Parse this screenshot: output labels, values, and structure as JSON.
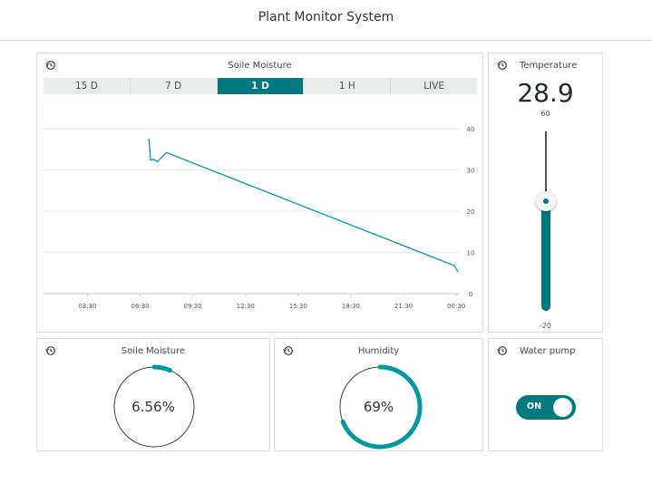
{
  "header": {
    "title": "Plant Monitor System"
  },
  "colors": {
    "accent": "#009a9e",
    "active_tab": "#007a80",
    "border": "#d6dbdc"
  },
  "icons": {
    "card_header": "history-icon"
  },
  "soil_chart": {
    "title": "Soile Moisture",
    "tabs": [
      "15 D",
      "7 D",
      "1 D",
      "1 H",
      "LIVE"
    ],
    "active_tab": "1 D"
  },
  "chart_data": {
    "type": "line",
    "title": "Soile Moisture",
    "xlabel": "",
    "ylabel": "",
    "x_ticks": [
      "03:30",
      "06:30",
      "09:30",
      "12:30",
      "15:30",
      "18:30",
      "21:30",
      "00:30"
    ],
    "y_ticks": [
      "40",
      "30",
      "20",
      "10",
      "0"
    ],
    "ylim": [
      0,
      40
    ],
    "xlim_hours": [
      1.0,
      24.7
    ],
    "grid": true,
    "series": [
      {
        "values_x_hours": [
          7.0,
          7.1,
          7.25,
          7.5,
          7.7,
          8.0,
          24.4,
          24.6
        ],
        "values_y": [
          37.6,
          32.4,
          32.6,
          32.0,
          33.0,
          34.2,
          6.8,
          5.2
        ]
      }
    ]
  },
  "temperature": {
    "title": "Temperature",
    "value": "28.9",
    "max_label": "60",
    "min_label": "-20",
    "value_num": 28.9,
    "min": -20,
    "max": 60
  },
  "soil_gauge": {
    "title": "Soile Moisture",
    "value_label": "6.56%",
    "value": 6.56
  },
  "humidity_gauge": {
    "title": "Humidity",
    "value_label": "69%",
    "value": 69
  },
  "pump": {
    "title": "Water pump",
    "state_label": "ON",
    "on": true
  }
}
